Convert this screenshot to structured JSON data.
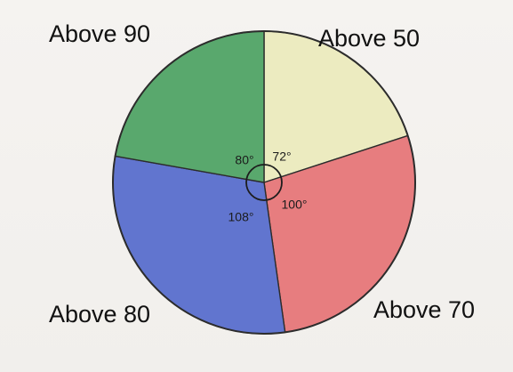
{
  "chart_data": {
    "type": "pie",
    "title": "",
    "slices": [
      {
        "label": "Above 50",
        "angle_label": "72°",
        "value": 72,
        "color": "#ecebc0"
      },
      {
        "label": "Above 70",
        "angle_label": "100°",
        "value": 100,
        "color": "#e77d7f"
      },
      {
        "label": "Above 80",
        "angle_label": "108°",
        "value": 108,
        "color": "#6175cf"
      },
      {
        "label": "Above 90",
        "angle_label": "80°",
        "value": 80,
        "color": "#59a86d"
      }
    ],
    "start_angle_deg": 0,
    "direction": "clockwise",
    "unit": "degrees"
  }
}
